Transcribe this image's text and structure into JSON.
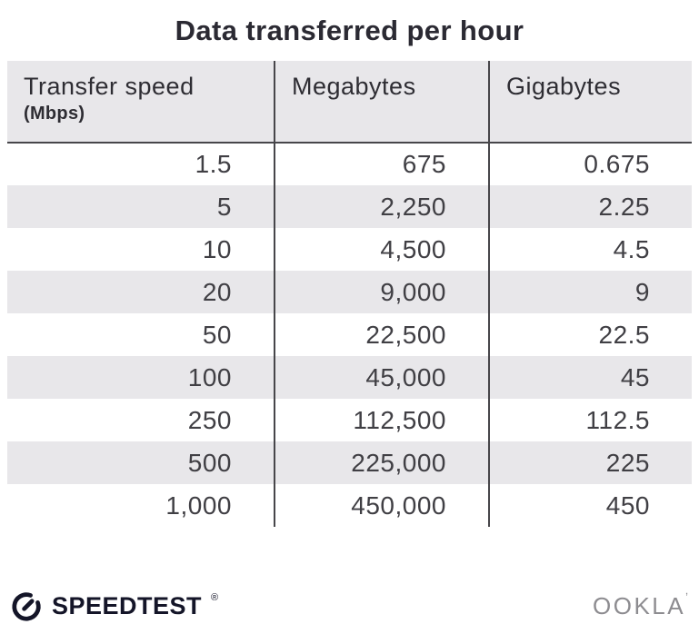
{
  "title": "Data transferred per hour",
  "table": {
    "columns": [
      {
        "label": "Transfer speed",
        "sublabel": "(Mbps)"
      },
      {
        "label": "Megabytes",
        "sublabel": ""
      },
      {
        "label": "Gigabytes",
        "sublabel": ""
      }
    ],
    "rows": [
      [
        "1.5",
        "675",
        "0.675"
      ],
      [
        "5",
        "2,250",
        "2.25"
      ],
      [
        "10",
        "4,500",
        "4.5"
      ],
      [
        "20",
        "9,000",
        "9"
      ],
      [
        "50",
        "22,500",
        "22.5"
      ],
      [
        "100",
        "45,000",
        "45"
      ],
      [
        "250",
        "112,500",
        "112.5"
      ],
      [
        "500",
        "225,000",
        "225"
      ],
      [
        "1,000",
        "450,000",
        "450"
      ]
    ]
  },
  "chart_data": {
    "type": "table",
    "title": "Data transferred per hour",
    "columns": [
      "Transfer speed (Mbps)",
      "Megabytes",
      "Gigabytes"
    ],
    "rows": [
      [
        1.5,
        675,
        0.675
      ],
      [
        5,
        2250,
        2.25
      ],
      [
        10,
        4500,
        4.5
      ],
      [
        20,
        9000,
        9
      ],
      [
        50,
        22500,
        22.5
      ],
      [
        100,
        45000,
        45
      ],
      [
        250,
        112500,
        112.5
      ],
      [
        500,
        225000,
        225
      ],
      [
        1000,
        450000,
        450
      ]
    ],
    "layout": {
      "stripe_style": "alternating rows, odd white / even light gray",
      "value_alignment": "right"
    }
  },
  "footer": {
    "speedtest_label": "SPEEDTEST",
    "speedtest_reg": "®",
    "ookla_label": "OOKLA",
    "ookla_mark": "ʼ"
  },
  "colors": {
    "stripe_bg": "#e8e7ea",
    "divider": "#47464a",
    "title_text": "#2b2a33",
    "cell_text": "#403f44",
    "logo_dark": "#141528",
    "ookla_gray": "#8d8c90"
  }
}
